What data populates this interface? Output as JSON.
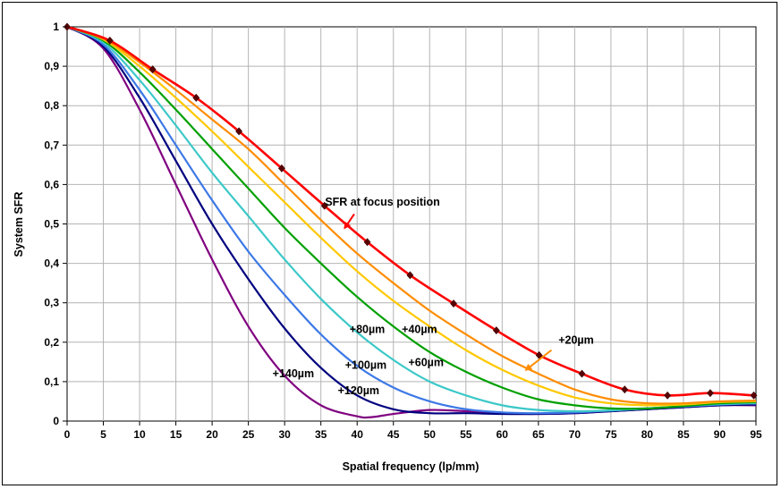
{
  "chart_data": {
    "type": "line",
    "title": "",
    "xlabel": "Spatial frequency (lp/mm)",
    "ylabel": "System SFR",
    "xlim": [
      0,
      95
    ],
    "ylim": [
      0,
      1
    ],
    "x_ticks": [
      "0",
      "5",
      "10",
      "15",
      "20",
      "25",
      "30",
      "35",
      "40",
      "45",
      "50",
      "55",
      "60",
      "65",
      "70",
      "75",
      "80",
      "85",
      "90",
      "95"
    ],
    "y_ticks": [
      "0",
      "0,1",
      "0,2",
      "0,3",
      "0,4",
      "0,5",
      "0,6",
      "0,7",
      "0,8",
      "0,9",
      "1"
    ],
    "grid": true,
    "legend": "none",
    "series": [
      {
        "name": "SFR at focus position",
        "color": "#ff0000",
        "markers": true,
        "x": [
          0,
          5.9,
          11.8,
          17.8,
          23.7,
          29.6,
          35.5,
          41.4,
          47.3,
          53.3,
          59.2,
          65.1,
          71.0,
          76.9,
          82.8,
          88.7,
          94.7
        ],
        "y": [
          1.0,
          0.965,
          0.892,
          0.82,
          0.735,
          0.641,
          0.546,
          0.454,
          0.37,
          0.298,
          0.23,
          0.167,
          0.12,
          0.08,
          0.065,
          0.071,
          0.065
        ]
      },
      {
        "name": "+20µm",
        "color": "#ff8c00",
        "markers": false,
        "x": [
          0,
          5,
          10,
          15,
          20,
          25,
          30,
          35,
          40,
          45,
          50,
          55,
          60,
          65,
          70,
          75,
          80,
          85,
          90,
          95
        ],
        "y": [
          1.0,
          0.97,
          0.91,
          0.84,
          0.765,
          0.69,
          0.6,
          0.51,
          0.425,
          0.35,
          0.28,
          0.22,
          0.165,
          0.12,
          0.08,
          0.055,
          0.045,
          0.045,
          0.05,
          0.052
        ]
      },
      {
        "name": "",
        "color": "#ffc800",
        "markers": false,
        "x": [
          0,
          5,
          10,
          15,
          20,
          25,
          30,
          35,
          40,
          45,
          50,
          55,
          60,
          65,
          70,
          75,
          80,
          85,
          90,
          95
        ],
        "y": [
          1.0,
          0.968,
          0.9,
          0.82,
          0.735,
          0.645,
          0.555,
          0.465,
          0.38,
          0.305,
          0.24,
          0.18,
          0.13,
          0.09,
          0.06,
          0.045,
          0.04,
          0.042,
          0.048,
          0.05
        ]
      },
      {
        "name": "+40µm",
        "color": "#00a000",
        "markers": false,
        "x": [
          0,
          5,
          10,
          15,
          20,
          25,
          30,
          35,
          40,
          45,
          50,
          55,
          60,
          65,
          70,
          75,
          80,
          85,
          90,
          95
        ],
        "y": [
          1.0,
          0.965,
          0.885,
          0.79,
          0.69,
          0.59,
          0.49,
          0.4,
          0.315,
          0.24,
          0.175,
          0.125,
          0.085,
          0.055,
          0.04,
          0.032,
          0.032,
          0.038,
          0.045,
          0.048
        ]
      },
      {
        "name": "+60µm",
        "color": "#3cc8c8",
        "markers": false,
        "x": [
          0,
          5,
          10,
          15,
          20,
          25,
          30,
          35,
          40,
          45,
          50,
          55,
          60,
          65,
          70,
          75,
          80,
          85,
          90,
          95
        ],
        "y": [
          1.0,
          0.96,
          0.865,
          0.75,
          0.63,
          0.52,
          0.41,
          0.31,
          0.225,
          0.155,
          0.1,
          0.065,
          0.04,
          0.028,
          0.025,
          0.027,
          0.032,
          0.038,
          0.043,
          0.045
        ]
      },
      {
        "name": "+80µm",
        "color": "#3c78e6",
        "markers": false,
        "x": [
          0,
          5,
          10,
          15,
          20,
          25,
          30,
          35,
          40,
          45,
          50,
          55,
          60,
          65,
          70,
          75,
          80,
          85,
          90,
          95
        ],
        "y": [
          1.0,
          0.955,
          0.84,
          0.7,
          0.56,
          0.43,
          0.32,
          0.22,
          0.14,
          0.085,
          0.05,
          0.03,
          0.022,
          0.02,
          0.022,
          0.027,
          0.032,
          0.037,
          0.042,
          0.045
        ]
      },
      {
        "name": "+100µm",
        "color": "#00007f",
        "markers": false,
        "x": [
          0,
          5,
          10,
          15,
          20,
          25,
          30,
          35,
          40,
          45,
          50,
          55,
          60,
          65,
          70,
          75,
          80,
          85,
          90,
          95
        ],
        "y": [
          1.0,
          0.95,
          0.82,
          0.66,
          0.5,
          0.36,
          0.235,
          0.135,
          0.065,
          0.03,
          0.02,
          0.02,
          0.018,
          0.018,
          0.02,
          0.025,
          0.03,
          0.035,
          0.04,
          0.042
        ]
      },
      {
        "name": "+120µm",
        "color": "#800080",
        "markers": false,
        "x": [
          0,
          5,
          10,
          15,
          20,
          25,
          30,
          35,
          40,
          42,
          45,
          50,
          55,
          60,
          65,
          70,
          75,
          80,
          85,
          90,
          95
        ],
        "y": [
          1.0,
          0.945,
          0.79,
          0.6,
          0.41,
          0.24,
          0.115,
          0.04,
          0.012,
          0.01,
          0.018,
          0.028,
          0.025,
          0.02,
          0.018,
          0.02,
          0.025,
          0.03,
          0.035,
          0.04,
          0.04
        ]
      }
    ],
    "annotations": [
      {
        "text": "SFR at focus position",
        "x": 43.5,
        "y": 0.555
      },
      {
        "text": "+20µm",
        "x": 70.2,
        "y": 0.205
      },
      {
        "text": "+40µm",
        "x": 48.6,
        "y": 0.232
      },
      {
        "text": "+60µm",
        "x": 49.5,
        "y": 0.148
      },
      {
        "text": "+80µm",
        "x": 41.4,
        "y": 0.232
      },
      {
        "text": "+100µm",
        "x": 41.2,
        "y": 0.142
      },
      {
        "text": "+120µm",
        "x": 40.2,
        "y": 0.077
      },
      {
        "text": "+140µm",
        "x": 31.2,
        "y": 0.12
      }
    ],
    "annotation_arrows": [
      {
        "color": "#ff0000",
        "from": [
          39.6,
          0.525
        ],
        "to": [
          38.3,
          0.49
        ]
      },
      {
        "color": "#ff8c00",
        "from": [
          66.8,
          0.18
        ],
        "to": [
          63.3,
          0.13
        ]
      }
    ]
  }
}
